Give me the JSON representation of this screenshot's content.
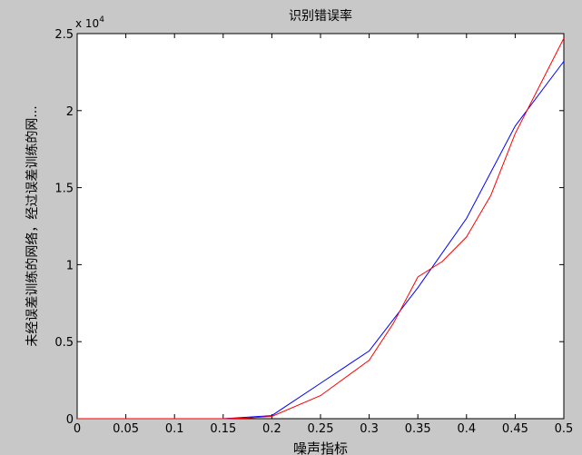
{
  "chart_data": {
    "type": "line",
    "title": "识别错误率",
    "xlabel": "噪声指标",
    "ylabel": "未经误差训练的网络，经过误差训练的网...",
    "y_exponent_label": "x 10",
    "y_exponent_power": "4",
    "xlim": [
      0,
      0.5
    ],
    "ylim": [
      0,
      25000
    ],
    "x_ticks": [
      0,
      0.05,
      0.1,
      0.15,
      0.2,
      0.25,
      0.3,
      0.35,
      0.4,
      0.45,
      0.5
    ],
    "x_tick_labels": [
      "0",
      "0.05",
      "0.1",
      "0.15",
      "0.2",
      "0.25",
      "0.3",
      "0.35",
      "0.4",
      "0.45",
      "0.5"
    ],
    "y_ticks": [
      0,
      5000,
      10000,
      15000,
      20000,
      25000
    ],
    "y_tick_labels": [
      "0",
      "0.5",
      "1",
      "1.5",
      "2",
      "2.5"
    ],
    "grid": false,
    "series": [
      {
        "color": "#0000ff",
        "x": [
          0,
          0.05,
          0.1,
          0.15,
          0.2,
          0.25,
          0.3,
          0.35,
          0.4,
          0.45,
          0.5
        ],
        "y": [
          0,
          0,
          0,
          0,
          200,
          2300,
          4400,
          8500,
          13000,
          19000,
          23200
        ]
      },
      {
        "color": "#ff0000",
        "x": [
          0,
          0.05,
          0.1,
          0.15,
          0.175,
          0.2,
          0.25,
          0.3,
          0.325,
          0.35,
          0.375,
          0.4,
          0.425,
          0.45,
          0.5
        ],
        "y": [
          0,
          0,
          0,
          0,
          50,
          150,
          1500,
          3800,
          6200,
          9200,
          10200,
          11800,
          14500,
          18500,
          24700
        ]
      }
    ]
  }
}
